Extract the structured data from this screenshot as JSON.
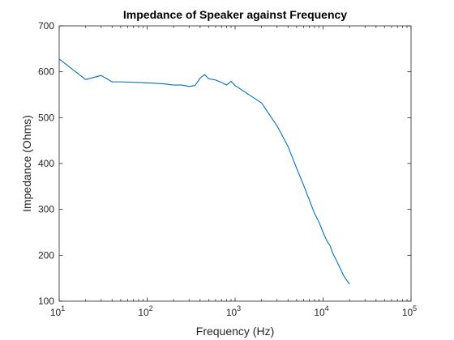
{
  "chart_data": {
    "type": "line",
    "title": "Impedance of Speaker against Frequency",
    "xlabel": "Frequency (Hz)",
    "ylabel": "Impedance (Ohms)",
    "xscale": "log",
    "xlim": [
      10,
      100000
    ],
    "ylim": [
      100,
      700
    ],
    "grid": false,
    "x_ticks": [
      {
        "base": "10",
        "exp": "1",
        "value": 10
      },
      {
        "base": "10",
        "exp": "2",
        "value": 100
      },
      {
        "base": "10",
        "exp": "3",
        "value": 1000
      },
      {
        "base": "10",
        "exp": "4",
        "value": 10000
      },
      {
        "base": "10",
        "exp": "5",
        "value": 100000
      }
    ],
    "y_ticks": [
      "100",
      "200",
      "300",
      "400",
      "500",
      "600",
      "700"
    ],
    "series": [
      {
        "color": "#0072bd",
        "x": [
          10,
          20,
          30,
          40,
          50,
          100,
          150,
          200,
          250,
          300,
          350,
          400,
          450,
          500,
          600,
          700,
          800,
          900,
          1000,
          2000,
          3000,
          4000,
          5000,
          6000,
          7000,
          8000,
          9000,
          10000,
          11000,
          12000,
          13000,
          14000,
          15000,
          16000,
          17000,
          18000,
          19000,
          20000
        ],
        "y": [
          628,
          583,
          592,
          578,
          578,
          576,
          574,
          571,
          571,
          568,
          570,
          586,
          594,
          585,
          582,
          577,
          571,
          579,
          570,
          532,
          482,
          437,
          390,
          353,
          320,
          291,
          272,
          250,
          232,
          221,
          203,
          191,
          179,
          168,
          157,
          149,
          143,
          137
        ]
      }
    ]
  }
}
